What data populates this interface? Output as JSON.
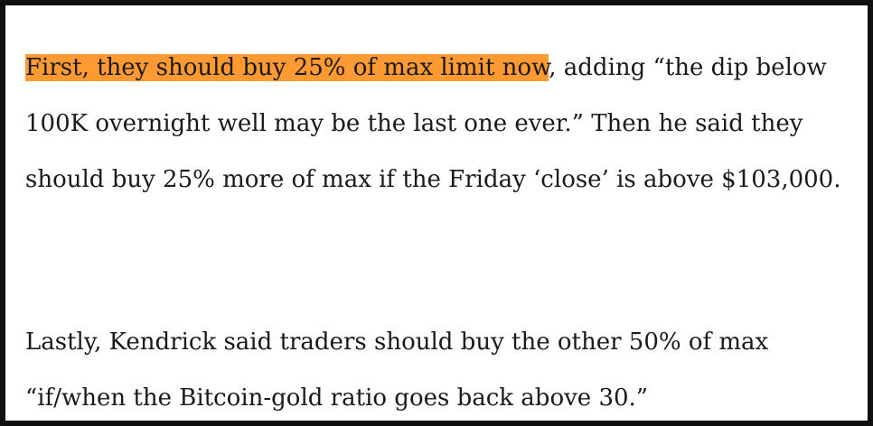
{
  "article": {
    "paragraph1": {
      "highlighted": "First, they should buy 25% of max limit now",
      "rest": ", adding “the dip below 100K overnight well may be the last one ever.” Then he said they should buy 25% more of max if the Friday ‘close’ is above $103,000."
    },
    "paragraph2": "Lastly, Kendrick said traders should buy the other 50% of max “if/when the Bitcoin-gold ratio goes back above 30.”",
    "highlight_color": "#ff9a33"
  }
}
